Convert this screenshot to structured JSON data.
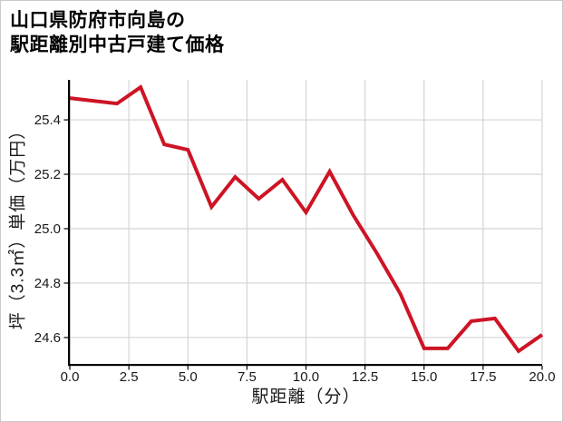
{
  "window": {
    "background": "#ffffff",
    "border_color": "#c9c9c9"
  },
  "title": {
    "line1": "山口県防府市向島の",
    "line2": "駅距離別中古戸建て価格"
  },
  "chart_data": {
    "type": "line",
    "title": "山口県防府市向島の駅距離別中古戸建て価格",
    "xlabel": "駅距離（分）",
    "ylabel": "坪（3.3㎡）単価（万円）",
    "x": [
      0,
      1,
      2,
      3,
      4,
      5,
      6,
      7,
      8,
      9,
      10,
      11,
      12,
      13,
      14,
      15,
      16,
      17,
      18,
      19,
      20
    ],
    "y": [
      25.48,
      25.47,
      25.46,
      25.52,
      25.31,
      25.29,
      25.08,
      25.19,
      25.11,
      25.18,
      25.06,
      25.21,
      25.05,
      24.91,
      24.76,
      24.56,
      24.56,
      24.66,
      24.67,
      24.55,
      24.61
    ],
    "xlim": [
      0,
      20
    ],
    "ylim": [
      24.503,
      25.547
    ],
    "xticks": [
      0,
      2.5,
      5,
      7.5,
      10,
      12.5,
      15,
      17.5,
      20
    ],
    "xtick_labels": [
      "0.0",
      "2.5",
      "5.0",
      "7.5",
      "10.0",
      "12.5",
      "15.0",
      "17.5",
      "20.0"
    ],
    "yticks": [
      25.4,
      25.2,
      25.0,
      24.8,
      24.6
    ],
    "ytick_labels": [
      "25.4",
      "25.2",
      "25.0",
      "24.8",
      "24.6"
    ],
    "grid": true,
    "grid_on": "both",
    "legend": null,
    "line_width": 4,
    "line_color": "#cd1425",
    "grid_color": "#d4d4d4",
    "axis_color": "#000000",
    "tick_label_color": "#1a1a1a",
    "tick_label_font_px": 15
  }
}
